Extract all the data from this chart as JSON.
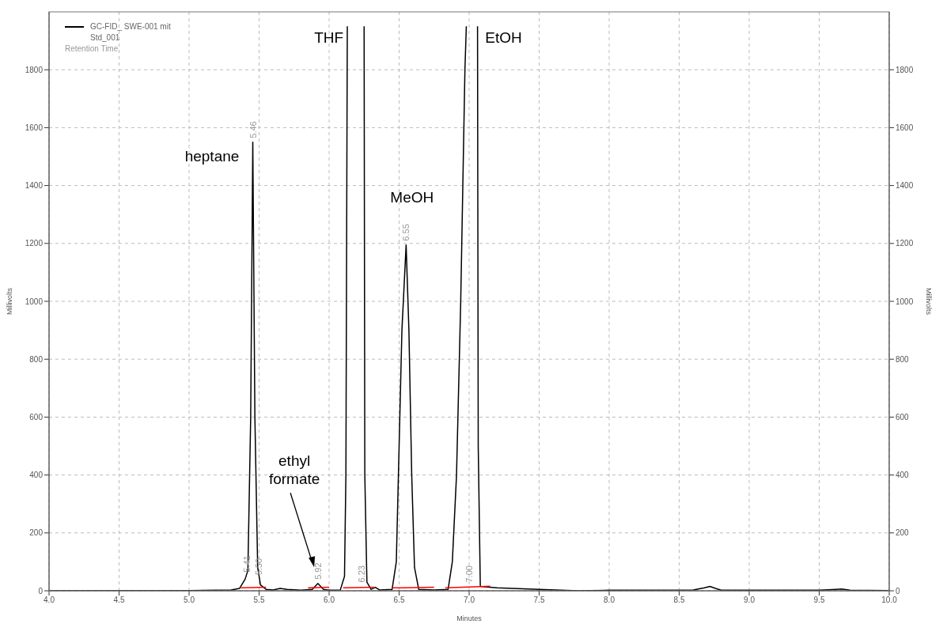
{
  "chart_data": {
    "type": "line",
    "xlabel": "Minutes",
    "ylabel": "Millivolts",
    "y2label": "Millivolts",
    "xlim": [
      4,
      10
    ],
    "xticks": [
      {
        "value": 4,
        "label": "4.0"
      },
      {
        "value": 4.5,
        "label": "4.5"
      },
      {
        "value": 5,
        "label": "5.0"
      },
      {
        "value": 5.5,
        "label": "5.5"
      },
      {
        "value": 6,
        "label": "6.0"
      },
      {
        "value": 6.5,
        "label": "6.5"
      },
      {
        "value": 7,
        "label": "7.0"
      },
      {
        "value": 7.5,
        "label": "7.5"
      },
      {
        "value": 8,
        "label": "8.0"
      },
      {
        "value": 8.5,
        "label": "8.5"
      },
      {
        "value": 9,
        "label": "9.0"
      },
      {
        "value": 9.5,
        "label": "9.5"
      },
      {
        "value": 10,
        "label": "10.0"
      }
    ],
    "ylim": [
      0,
      2000
    ],
    "yticks": [
      0,
      200,
      400,
      600,
      800,
      1000,
      1200,
      1400,
      1600,
      1800
    ],
    "y2lim": [
      0,
      2000
    ],
    "y2ticks": [
      0,
      200,
      400,
      600,
      800,
      1000,
      1200,
      1400,
      1600,
      1800
    ],
    "grid": true,
    "legend": "top left",
    "line_style": "solid",
    "marker": "none",
    "series": [
      {
        "name": "GC-FID_ SWE-001 mit Std_001",
        "color": "#000000",
        "x": [
          4,
          5,
          5.3,
          5.36,
          5.4,
          5.42,
          5.44,
          5.455,
          5.47,
          5.49,
          5.51,
          5.55,
          5.6,
          5.65,
          5.7,
          5.8,
          5.88,
          5.92,
          5.96,
          6,
          6.08,
          6.11,
          6.12,
          6.13,
          6.19,
          6.25,
          6.255,
          6.27,
          6.3,
          6.33,
          6.36,
          6.45,
          6.48,
          6.5,
          6.52,
          6.55,
          6.57,
          6.59,
          6.61,
          6.64,
          6.75,
          6.85,
          6.88,
          6.91,
          6.94,
          6.97,
          6.98,
          7.02,
          7.06,
          7.065,
          7.08,
          7.2,
          7.5,
          7.78,
          8,
          8.6,
          8.68,
          8.72,
          8.76,
          8.8,
          9.5,
          9.62,
          9.66,
          9.72,
          10
        ],
        "values": [
          0,
          1,
          3,
          8,
          40,
          70,
          600,
          1550,
          600,
          80,
          20,
          5,
          3,
          8,
          5,
          2,
          5,
          25,
          5,
          2,
          3,
          50,
          400,
          1950,
          null,
          1950,
          400,
          30,
          5,
          12,
          3,
          5,
          100,
          500,
          900,
          1195,
          900,
          400,
          80,
          5,
          3,
          5,
          100,
          400,
          1000,
          1800,
          1950,
          null,
          1950,
          500,
          15,
          10,
          5,
          0,
          2,
          3,
          10,
          15,
          8,
          2,
          2,
          5,
          6,
          2,
          1
        ]
      },
      {
        "color": "#ff0000",
        "x": [
          5.37,
          5.55,
          5.7,
          5.85,
          6,
          6.05,
          6.1,
          6.32,
          6.4,
          6.45,
          6.75,
          6.8,
          6.83,
          7.15
        ],
        "values": [
          10,
          12,
          null,
          10,
          12,
          null,
          10,
          12,
          null,
          10,
          12,
          null,
          10,
          16
        ]
      }
    ],
    "annotations": [
      "Retention Time",
      "heptane",
      "THF",
      "EtOH",
      "MeOH",
      "ethyl formate",
      {
        "text": "5.41",
        "x": 5.41,
        "y": 50
      },
      {
        "text": "5.46",
        "x": 5.455,
        "y": 1550
      },
      {
        "text": "5.50",
        "x": 5.5,
        "y": 40
      },
      {
        "text": "5.92",
        "x": 5.92,
        "y": 25
      },
      {
        "text": "6.23",
        "x": 6.23,
        "y": 15
      },
      {
        "text": "6.55",
        "x": 6.55,
        "y": 1195
      },
      {
        "text": "7.00",
        "x": 7,
        "y": 15
      }
    ]
  }
}
